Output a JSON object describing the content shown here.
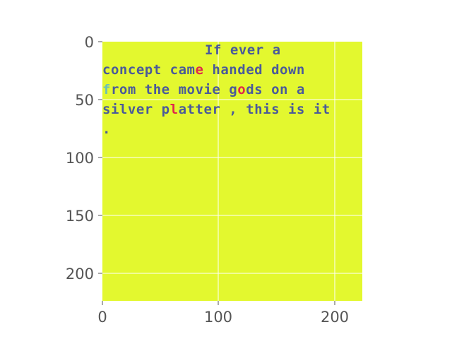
{
  "colors": {
    "image_background": "#e3f82f",
    "text_main": "#4a5a9a",
    "text_accent_red": "#e0284a",
    "text_accent_teal": "#6bc0b8",
    "grid": "#ffffff",
    "tick_label": "#555555",
    "axis_tick": "#555555"
  },
  "image": {
    "text_lines": [
      "If ever a",
      "concept came handed down",
      "from the movie gods on a",
      "silver platter , this is it",
      "."
    ],
    "accent_chars": [
      {
        "line": 1,
        "index": 11,
        "color_key": "text_accent_red"
      },
      {
        "line": 2,
        "index": 16,
        "color_key": "text_accent_red"
      },
      {
        "line": 2,
        "index": 0,
        "color_key": "text_accent_teal"
      },
      {
        "line": 3,
        "index": 8,
        "color_key": "text_accent_red"
      }
    ]
  },
  "axes": {
    "x_ticks": [
      "0",
      "100",
      "200"
    ],
    "y_ticks": [
      "0",
      "50",
      "100",
      "150",
      "200"
    ]
  }
}
